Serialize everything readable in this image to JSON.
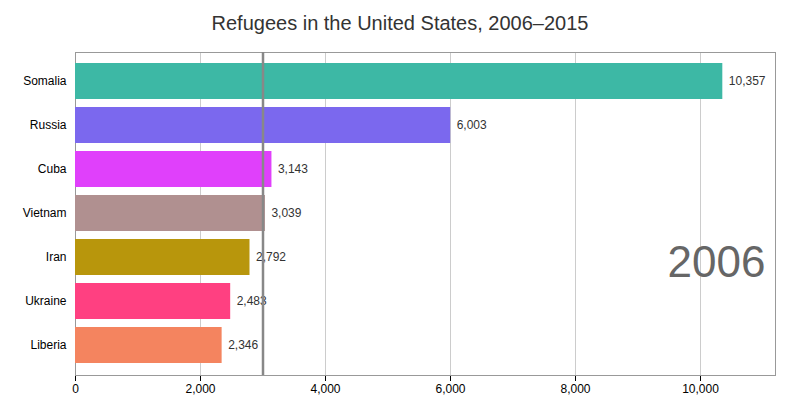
{
  "chart_data": {
    "type": "bar",
    "orientation": "horizontal",
    "title": "Refugees in the United States, 2006–2015",
    "categories": [
      "Liberia",
      "Ukraine",
      "Iran",
      "Vietnam",
      "Cuba",
      "Russia",
      "Somalia"
    ],
    "values": [
      2346,
      2483,
      2792,
      3039,
      3143,
      6003,
      10357
    ],
    "value_labels": [
      "2,346",
      "2,483",
      "2,792",
      "3,039",
      "3,143",
      "6,003",
      "10,357"
    ],
    "colors": [
      "#f4845f",
      "#ff4081",
      "#b8960c",
      "#b09090",
      "#e040fb",
      "#7b68ee",
      "#3db8a5"
    ],
    "data_labels": true,
    "xlim": [
      0,
      11200
    ],
    "xticks": [
      0,
      {
        "value": 2000,
        "label": "2,000"
      },
      {
        "value": 4000,
        "label": "4,000"
      },
      {
        "value": 6000,
        "label": "6,000"
      },
      {
        "value": 8000,
        "label": "8,000"
      },
      {
        "value": 10000,
        "label": "10,000"
      }
    ],
    "grid": true,
    "vline": {
      "x": 3000,
      "color": "#888888"
    },
    "annotations": [
      {
        "text": "2006",
        "color": "#666666"
      }
    ]
  }
}
